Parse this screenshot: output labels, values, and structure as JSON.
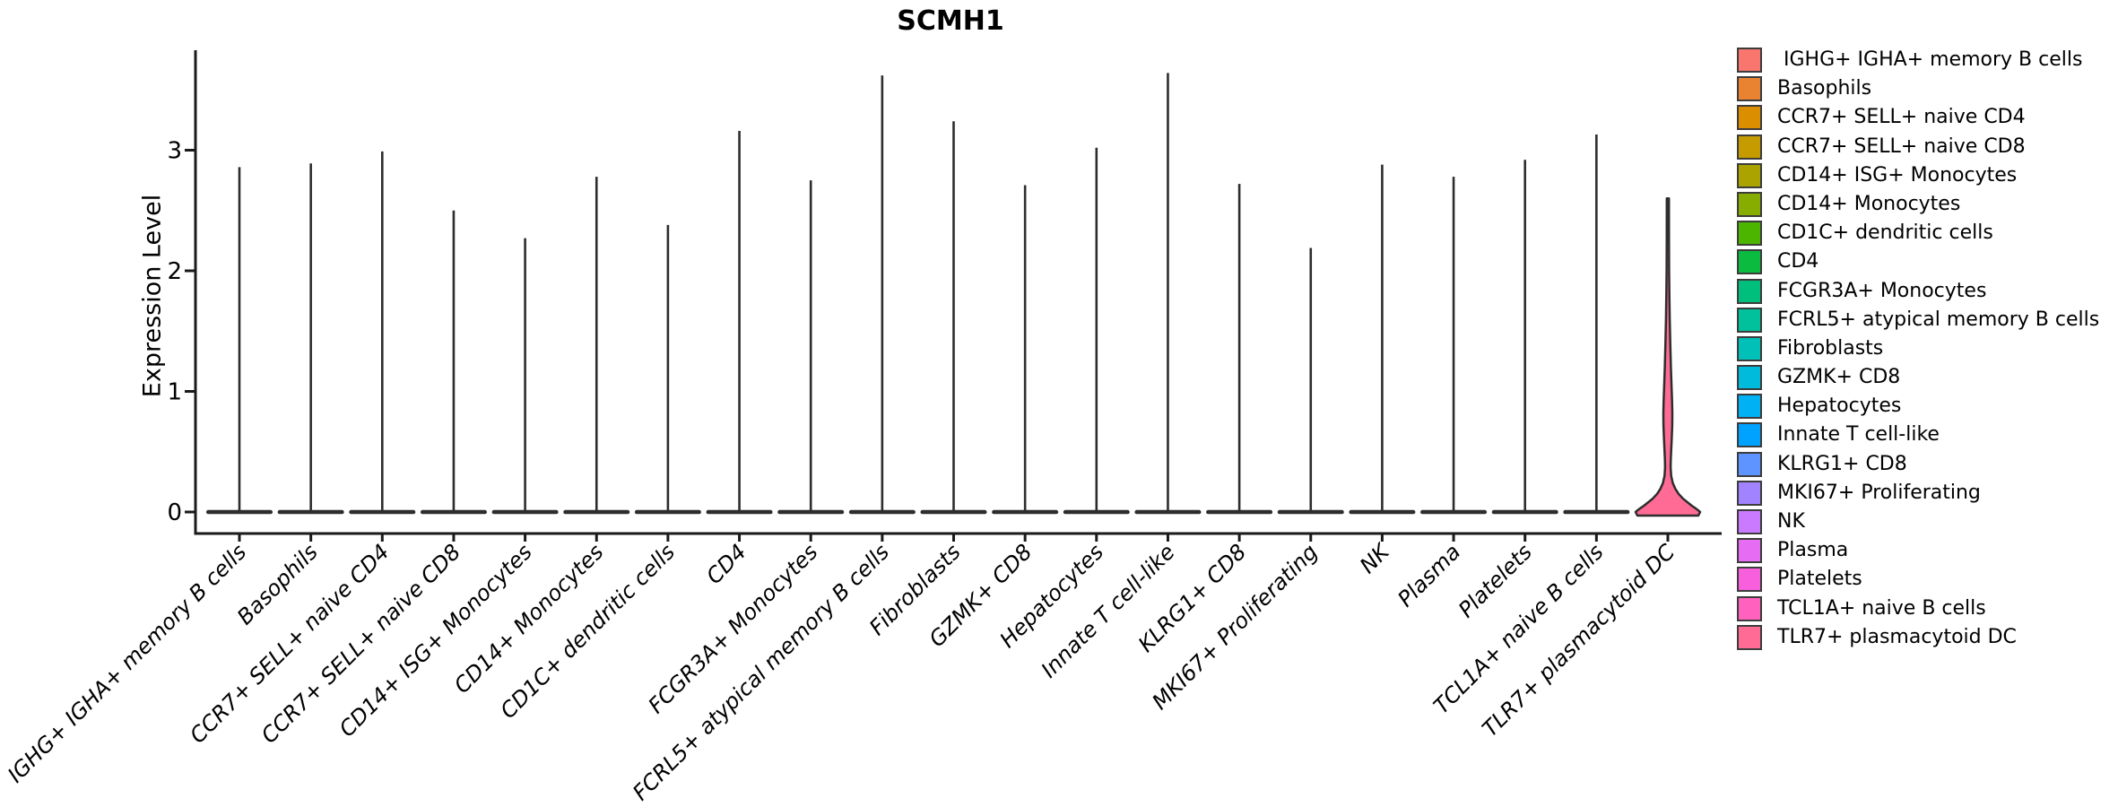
{
  "title": "SCMH1",
  "y_axis": {
    "label": "Expression Level",
    "tick_labels": [
      "0",
      "1",
      "2",
      "3"
    ]
  },
  "x_axis": {
    "categories": [
      "IGHG+ IGHA+ memory B cells",
      "Basophils",
      "CCR7+ SELL+ naive CD4",
      "CCR7+ SELL+ naive CD8",
      "CD14+ ISG+ Monocytes",
      "CD14+ Monocytes",
      "CD1C+ dendritic cells",
      "CD4",
      "FCGR3A+ Monocytes",
      "FCRL5+ atypical memory B cells",
      "Fibroblasts",
      "GZMK+ CD8",
      "Hepatocytes",
      "Innate T cell-like",
      "KLRG1+ CD8",
      "MKI67+ Proliferating",
      "NK",
      "Plasma",
      "Platelets",
      "TCL1A+ naive B cells",
      "TLR7+ plasmacytoid DC"
    ]
  },
  "legend": {
    "items": [
      {
        "label": " IGHG+ IGHA+ memory B cells",
        "color": "#F8766D"
      },
      {
        "label": "Basophils",
        "color": "#EA8331"
      },
      {
        "label": "CCR7+ SELL+ naive CD4",
        "color": "#DB8E00"
      },
      {
        "label": "CCR7+ SELL+ naive CD8",
        "color": "#C59B00"
      },
      {
        "label": "CD14+ ISG+ Monocytes",
        "color": "#ABA300"
      },
      {
        "label": "CD14+ Monocytes",
        "color": "#86AD00"
      },
      {
        "label": "CD1C+ dendritic cells",
        "color": "#4CB500"
      },
      {
        "label": "CD4",
        "color": "#0ABB40"
      },
      {
        "label": "FCGR3A+ Monocytes",
        "color": "#00BE7C"
      },
      {
        "label": "FCRL5+ atypical memory B cells",
        "color": "#00C19B"
      },
      {
        "label": "Fibroblasts",
        "color": "#00C0B8"
      },
      {
        "label": "GZMK+ CD8",
        "color": "#00BBDB"
      },
      {
        "label": "Hepatocytes",
        "color": "#00B2F3"
      },
      {
        "label": "Innate T cell-like",
        "color": "#00A2FF"
      },
      {
        "label": "KLRG1+ CD8",
        "color": "#5E94FF"
      },
      {
        "label": "MKI67+ Proliferating",
        "color": "#A183FF"
      },
      {
        "label": "NK",
        "color": "#C97AFF"
      },
      {
        "label": "Plasma",
        "color": "#E56CF3"
      },
      {
        "label": "Platelets",
        "color": "#F75FDC"
      },
      {
        "label": "TCL1A+ naive B cells",
        "color": "#FF61BF"
      },
      {
        "label": "TLR7+ plasmacytoid DC",
        "color": "#FF6B94"
      }
    ]
  },
  "chart_data": {
    "type": "violin",
    "title": "SCMH1",
    "xlabel": "",
    "ylabel": "Expression Level",
    "ylim": [
      -0.18,
      3.82
    ],
    "yticks": [
      0,
      1,
      2,
      3
    ],
    "grid": false,
    "legend_position": "right",
    "categories": [
      "IGHG+ IGHA+ memory B cells",
      "Basophils",
      "CCR7+ SELL+ naive CD4",
      "CCR7+ SELL+ naive CD8",
      "CD14+ ISG+ Monocytes",
      "CD14+ Monocytes",
      "CD1C+ dendritic cells",
      "CD4",
      "FCGR3A+ Monocytes",
      "FCRL5+ atypical memory B cells",
      "Fibroblasts",
      "GZMK+ CD8",
      "Hepatocytes",
      "Innate T cell-like",
      "KLRG1+ CD8",
      "MKI67+ Proliferating",
      "NK",
      "Plasma",
      "Platelets",
      "TCL1A+ naive B cells",
      "TLR7+ plasmacytoid DC"
    ],
    "colors": [
      "#F8766D",
      "#EA8331",
      "#DB8E00",
      "#C59B00",
      "#ABA300",
      "#86AD00",
      "#4CB500",
      "#0ABB40",
      "#00BE7C",
      "#00C19B",
      "#00C0B8",
      "#00BBDB",
      "#00B2F3",
      "#00A2FF",
      "#5E94FF",
      "#A183FF",
      "#C97AFF",
      "#E56CF3",
      "#F75FDC",
      "#FF61BF",
      "#FF6B94"
    ],
    "max_expression": [
      2.86,
      2.89,
      2.99,
      2.5,
      2.27,
      2.78,
      2.38,
      3.16,
      2.75,
      3.62,
      3.24,
      2.71,
      3.02,
      3.64,
      2.72,
      2.19,
      2.88,
      2.78,
      2.92,
      3.13,
      2.6
    ],
    "violin_mode": "most cells at 0 (flat base) with thin density spike to max",
    "tlr7_width_profile": [
      [
        2.6,
        1.2
      ],
      [
        2.3,
        1.25
      ],
      [
        2.0,
        1.4
      ],
      [
        1.8,
        1.7
      ],
      [
        1.6,
        2.1
      ],
      [
        1.4,
        2.7
      ],
      [
        1.2,
        3.4
      ],
      [
        1.05,
        4.1
      ],
      [
        0.92,
        4.7
      ],
      [
        0.82,
        5.0
      ],
      [
        0.72,
        4.9
      ],
      [
        0.62,
        4.4
      ],
      [
        0.52,
        3.8
      ],
      [
        0.44,
        3.3
      ],
      [
        0.37,
        3.1
      ],
      [
        0.3,
        3.7
      ],
      [
        0.24,
        5.5
      ],
      [
        0.19,
        8.5
      ],
      [
        0.15,
        12
      ],
      [
        0.11,
        17
      ],
      [
        0.08,
        22
      ],
      [
        0.05,
        27
      ],
      [
        0.03,
        31
      ],
      [
        0.01,
        34.5
      ],
      [
        0.0,
        36
      ]
    ]
  },
  "style_colors": {
    "axis": "#1a1a1a",
    "violin_line": "#2d2d2d",
    "text": "#000000"
  }
}
